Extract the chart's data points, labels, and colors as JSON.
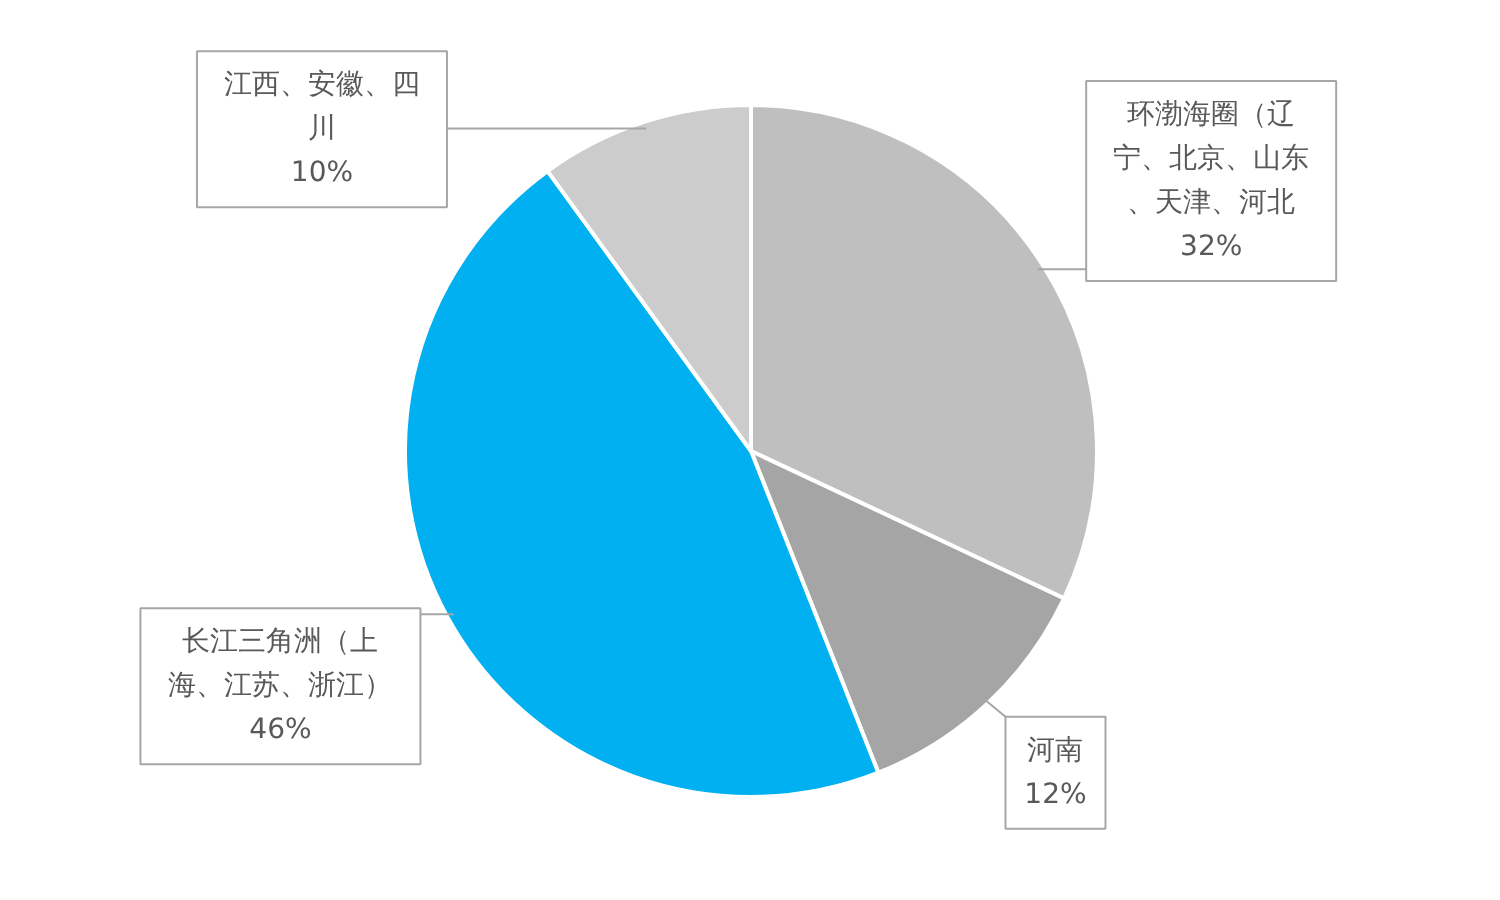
{
  "chart_data": {
    "type": "pie",
    "categories": [
      "环渤海圈（辽宁、北京、山东、天津、河北",
      "河南",
      "长江三角洲（上海、江苏、浙江）",
      "江西、安徽、四川"
    ],
    "values": [
      32,
      12,
      46,
      10
    ],
    "colors": [
      "#bfbfbf",
      "#a5a5a5",
      "#00b0f0",
      "#cccccc"
    ],
    "value_labels": [
      "32%",
      "12%",
      "46%",
      "10%"
    ]
  }
}
